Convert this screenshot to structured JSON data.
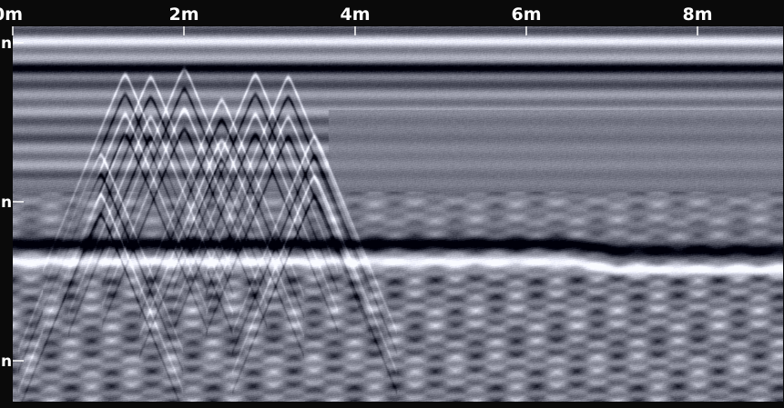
{
  "chart_data": {
    "type": "heatmap",
    "title": "",
    "xlabel": "",
    "ylabel": "",
    "x_unit": "m",
    "xlim": [
      0,
      9
    ],
    "x_ticks": [
      {
        "value": 0,
        "label": "0m"
      },
      {
        "value": 2,
        "label": "2m"
      },
      {
        "value": 4,
        "label": "4m"
      },
      {
        "value": 6,
        "label": "6m"
      },
      {
        "value": 8,
        "label": "8m"
      }
    ],
    "depth_ticks": [
      {
        "label": "n"
      },
      {
        "label": "n"
      },
      {
        "label": "n"
      }
    ],
    "grid": false,
    "colormap": [
      "#000000",
      "#ffffff"
    ],
    "features": {
      "surface_reflector": "horizontal band near top of section",
      "hyperbolas_x_range_m": [
        0.6,
        3.4
      ],
      "interface_reflector": "strong horizontal dark/bright band across full width, slight dip after 7m"
    }
  }
}
